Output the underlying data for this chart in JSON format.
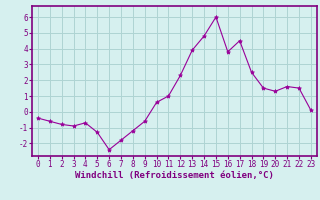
{
  "x": [
    0,
    1,
    2,
    3,
    4,
    5,
    6,
    7,
    8,
    9,
    10,
    11,
    12,
    13,
    14,
    15,
    16,
    17,
    18,
    19,
    20,
    21,
    22,
    23
  ],
  "y": [
    -0.4,
    -0.6,
    -0.8,
    -0.9,
    -0.7,
    -1.3,
    -2.4,
    -1.8,
    -1.2,
    -0.6,
    0.6,
    1.0,
    2.3,
    3.9,
    4.8,
    6.0,
    3.8,
    4.5,
    2.5,
    1.5,
    1.3,
    1.6,
    1.5,
    0.1
  ],
  "line_color": "#990099",
  "marker": "*",
  "marker_size": 3,
  "bg_color": "#d6f0ef",
  "grid_color": "#aed4d3",
  "xlabel": "Windchill (Refroidissement éolien,°C)",
  "ylabel_ticks": [
    -2,
    -1,
    0,
    1,
    2,
    3,
    4,
    5,
    6
  ],
  "xlim": [
    -0.5,
    23.5
  ],
  "ylim": [
    -2.8,
    6.7
  ],
  "xticks": [
    0,
    1,
    2,
    3,
    4,
    5,
    6,
    7,
    8,
    9,
    10,
    11,
    12,
    13,
    14,
    15,
    16,
    17,
    18,
    19,
    20,
    21,
    22,
    23
  ],
  "tick_fontsize": 5.5,
  "xlabel_fontsize": 6.5,
  "spine_color": "#800080",
  "tick_color": "#800080",
  "label_color": "#800080"
}
